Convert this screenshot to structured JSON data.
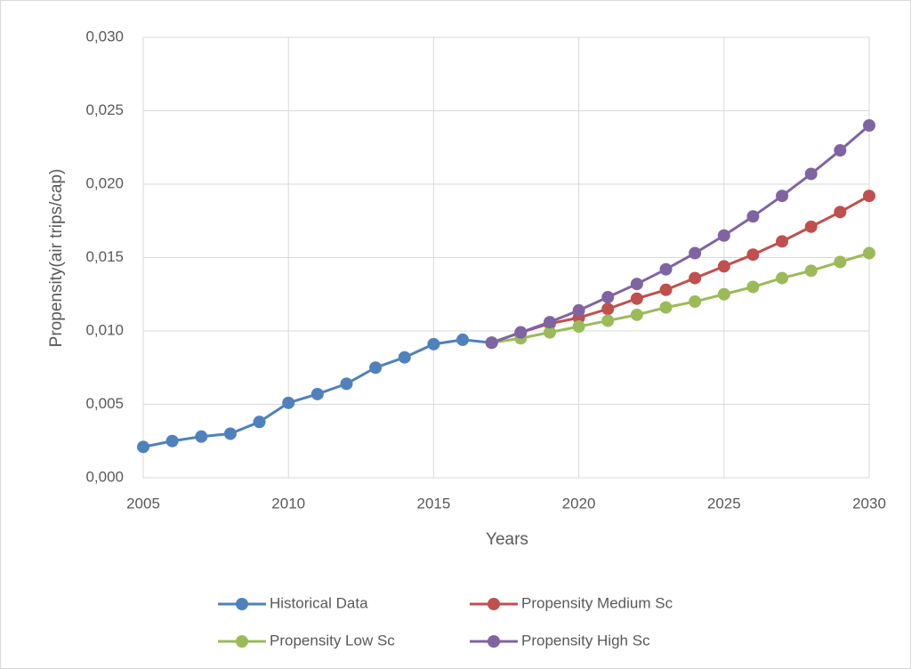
{
  "chart_data": {
    "type": "line",
    "xlabel": "Years",
    "ylabel": "Propensity(air trips/cap)",
    "x": [
      2005,
      2006,
      2007,
      2008,
      2009,
      2010,
      2011,
      2012,
      2013,
      2014,
      2015,
      2016,
      2017,
      2018,
      2019,
      2020,
      2021,
      2022,
      2023,
      2024,
      2025,
      2026,
      2027,
      2028,
      2029,
      2030
    ],
    "series": [
      {
        "name": "Historical Data",
        "color": "#4f81bd",
        "values": [
          0.0021,
          0.0025,
          0.0028,
          0.003,
          0.0038,
          0.0051,
          0.0057,
          0.0064,
          0.0075,
          0.0082,
          0.0091,
          0.0094,
          0.0092,
          null,
          null,
          null,
          null,
          null,
          null,
          null,
          null,
          null,
          null,
          null,
          null,
          null
        ]
      },
      {
        "name": "Propensity Medium Sc",
        "color": "#c0504d",
        "values": [
          null,
          null,
          null,
          null,
          null,
          null,
          null,
          null,
          null,
          null,
          null,
          null,
          0.0092,
          0.0099,
          0.0105,
          0.0109,
          0.0115,
          0.0122,
          0.0128,
          0.0136,
          0.0144,
          0.0152,
          0.0161,
          0.0171,
          0.0181,
          0.0192
        ]
      },
      {
        "name": "Propensity Low Sc",
        "color": "#9bbb59",
        "values": [
          null,
          null,
          null,
          null,
          null,
          null,
          null,
          null,
          null,
          null,
          null,
          null,
          0.0092,
          0.0095,
          0.0099,
          0.0103,
          0.0107,
          0.0111,
          0.0116,
          0.012,
          0.0125,
          0.013,
          0.0136,
          0.0141,
          0.0147,
          0.0153
        ]
      },
      {
        "name": "Propensity High Sc",
        "color": "#8064a2",
        "values": [
          null,
          null,
          null,
          null,
          null,
          null,
          null,
          null,
          null,
          null,
          null,
          null,
          0.0092,
          0.0099,
          0.0106,
          0.0114,
          0.0123,
          0.0132,
          0.0142,
          0.0153,
          0.0165,
          0.0178,
          0.0192,
          0.0207,
          0.0223,
          0.024
        ]
      }
    ],
    "xlim": [
      2005,
      2030
    ],
    "xticks": [
      2005,
      2010,
      2015,
      2020,
      2025,
      2030
    ],
    "ylim": [
      0,
      0.03
    ],
    "yticks": [
      {
        "value": 0,
        "label": "0,000"
      },
      {
        "value": 0.005,
        "label": "0,005"
      },
      {
        "value": 0.01,
        "label": "0,010"
      },
      {
        "value": 0.015,
        "label": "0,015"
      },
      {
        "value": 0.02,
        "label": "0,020"
      },
      {
        "value": 0.025,
        "label": "0,025"
      },
      {
        "value": 0.03,
        "label": "0,030"
      }
    ],
    "grid": true,
    "legend": "bottom"
  }
}
